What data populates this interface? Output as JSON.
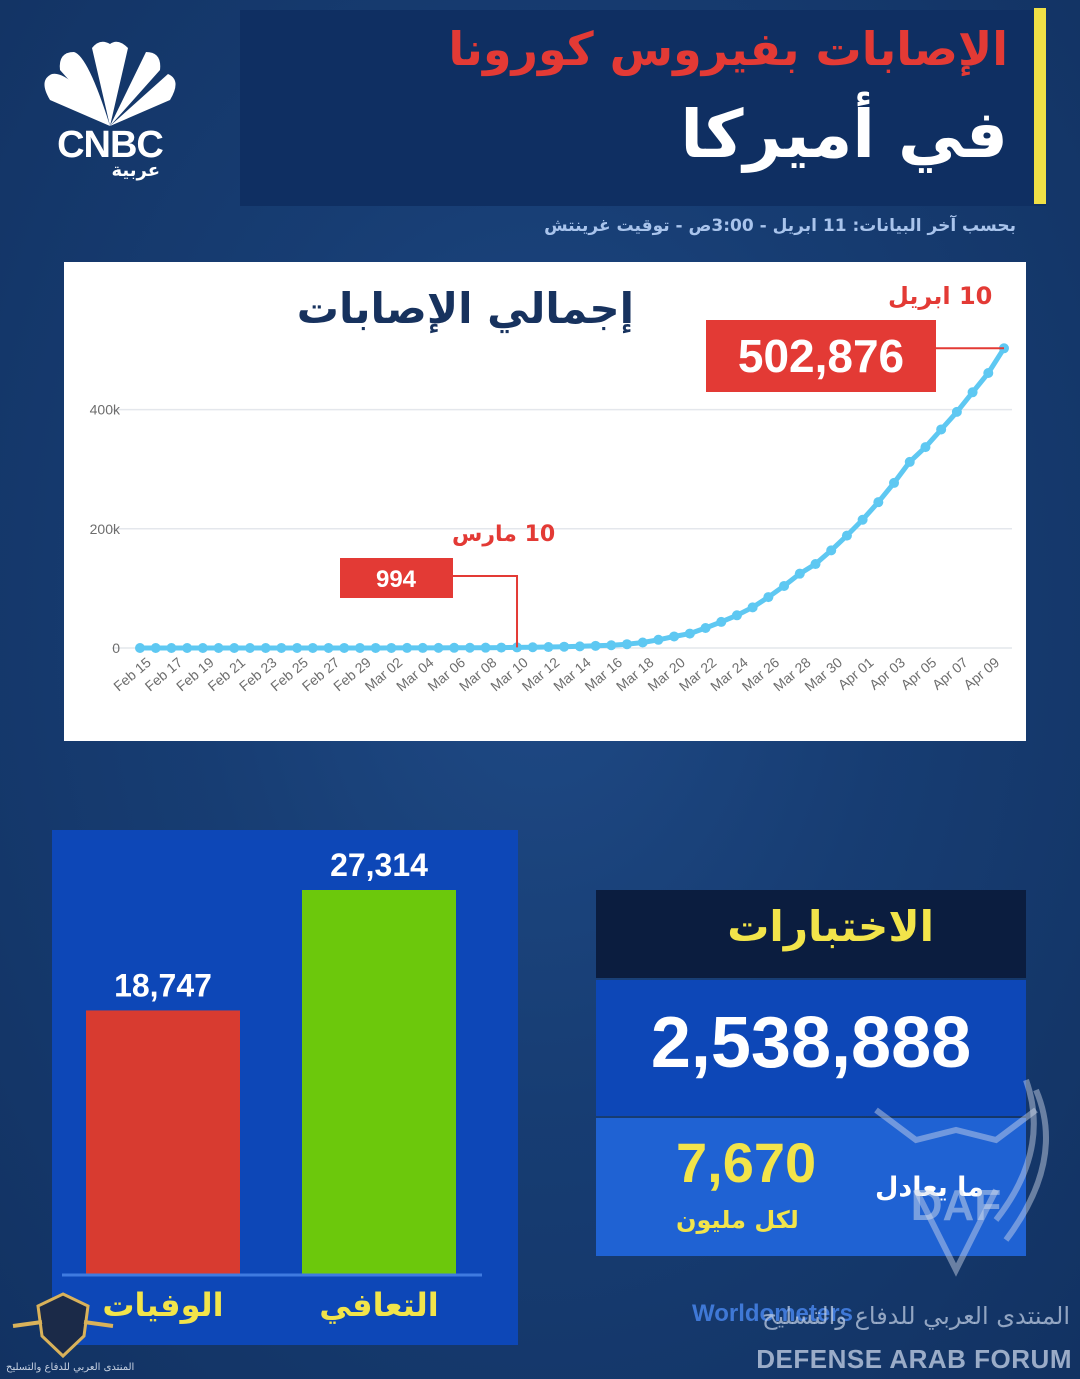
{
  "logo": {
    "brand": "CNBC",
    "sub": "عربية"
  },
  "header": {
    "title_line1": "الإصابات بفيروس كورونا",
    "title_line2": "في أميركا",
    "subtitle": "بحسب آخر البيانات: 11 ابريل - 3:00ص - توقيت غرينتش"
  },
  "chart_data": [
    {
      "type": "line",
      "title": "إجمالي الإصابات",
      "x": [
        "Feb 15",
        "Feb 16",
        "Feb 17",
        "Feb 18",
        "Feb 19",
        "Feb 20",
        "Feb 21",
        "Feb 22",
        "Feb 23",
        "Feb 24",
        "Feb 25",
        "Feb 26",
        "Feb 27",
        "Feb 28",
        "Feb 29",
        "Mar 01",
        "Mar 02",
        "Mar 03",
        "Mar 04",
        "Mar 05",
        "Mar 06",
        "Mar 07",
        "Mar 08",
        "Mar 09",
        "Mar 10",
        "Mar 11",
        "Mar 12",
        "Mar 13",
        "Mar 14",
        "Mar 15",
        "Mar 16",
        "Mar 17",
        "Mar 18",
        "Mar 19",
        "Mar 20",
        "Mar 21",
        "Mar 22",
        "Mar 23",
        "Mar 24",
        "Mar 25",
        "Mar 26",
        "Mar 27",
        "Mar 28",
        "Mar 29",
        "Mar 30",
        "Mar 31",
        "Apr 01",
        "Apr 02",
        "Apr 03",
        "Apr 04",
        "Apr 05",
        "Apr 06",
        "Apr 07",
        "Apr 08",
        "Apr 09",
        "Apr 10"
      ],
      "x_tick_labels": [
        "Feb 15",
        "Feb 17",
        "Feb 19",
        "Feb 21",
        "Feb 23",
        "Feb 25",
        "Feb 27",
        "Feb 29",
        "Mar 02",
        "Mar 04",
        "Mar 06",
        "Mar 08",
        "Mar 10",
        "Mar 12",
        "Mar 14",
        "Mar 16",
        "Mar 18",
        "Mar 20",
        "Mar 22",
        "Mar 24",
        "Mar 26",
        "Mar 28",
        "Mar 30",
        "Apr 01",
        "Apr 03",
        "Apr 05",
        "Apr 07",
        "Apr 09"
      ],
      "series": [
        {
          "values": [
            15,
            15,
            15,
            15,
            15,
            15,
            35,
            35,
            35,
            53,
            57,
            60,
            60,
            62,
            68,
            75,
            100,
            124,
            158,
            221,
            319,
            435,
            541,
            704,
            994,
            1301,
            1630,
            2183,
            2770,
            3613,
            4596,
            6344,
            9197,
            13779,
            19367,
            24192,
            33592,
            43781,
            54856,
            68211,
            85435,
            104126,
            124686,
            140886,
            163788,
            188592,
            215215,
            244678,
            276965,
            312245,
            337072,
            366667,
            396223,
            429052,
            461437,
            502876
          ]
        }
      ],
      "ylim": [
        0,
        500000
      ],
      "y_ticks": [
        "0",
        "200k",
        "400k"
      ],
      "grid": true,
      "color": "#5ec8f2",
      "annotations": [
        {
          "date_label": "10 مارس",
          "x": "Mar 10",
          "value": "994"
        },
        {
          "date_label": "10 ابريل",
          "x": "Apr 10",
          "value": "502,876"
        }
      ]
    },
    {
      "type": "bar",
      "categories": [
        "الوفيات",
        "التعافي"
      ],
      "values": [
        18747,
        27314
      ],
      "value_labels": [
        "18,747",
        "27,314"
      ],
      "colors": [
        "#d83b30",
        "#6cc80c"
      ]
    }
  ],
  "tests": {
    "label": "الاختبارات",
    "total": "2,538,888",
    "equivalent_label": "ما يعادل",
    "per_million": "7,670",
    "per_million_label": "لكل مليون"
  },
  "source": "Worldometers",
  "watermark": {
    "initials": "DAF",
    "arabic": "المنتدى العربي للدفاع والتسليح",
    "english": "DEFENSE ARAB FORUM"
  },
  "colors": {
    "accent_red": "#e33a35",
    "accent_yellow": "#f2e44a",
    "panel_blue": "#0d47b7",
    "line_blue": "#5ec8f2"
  }
}
